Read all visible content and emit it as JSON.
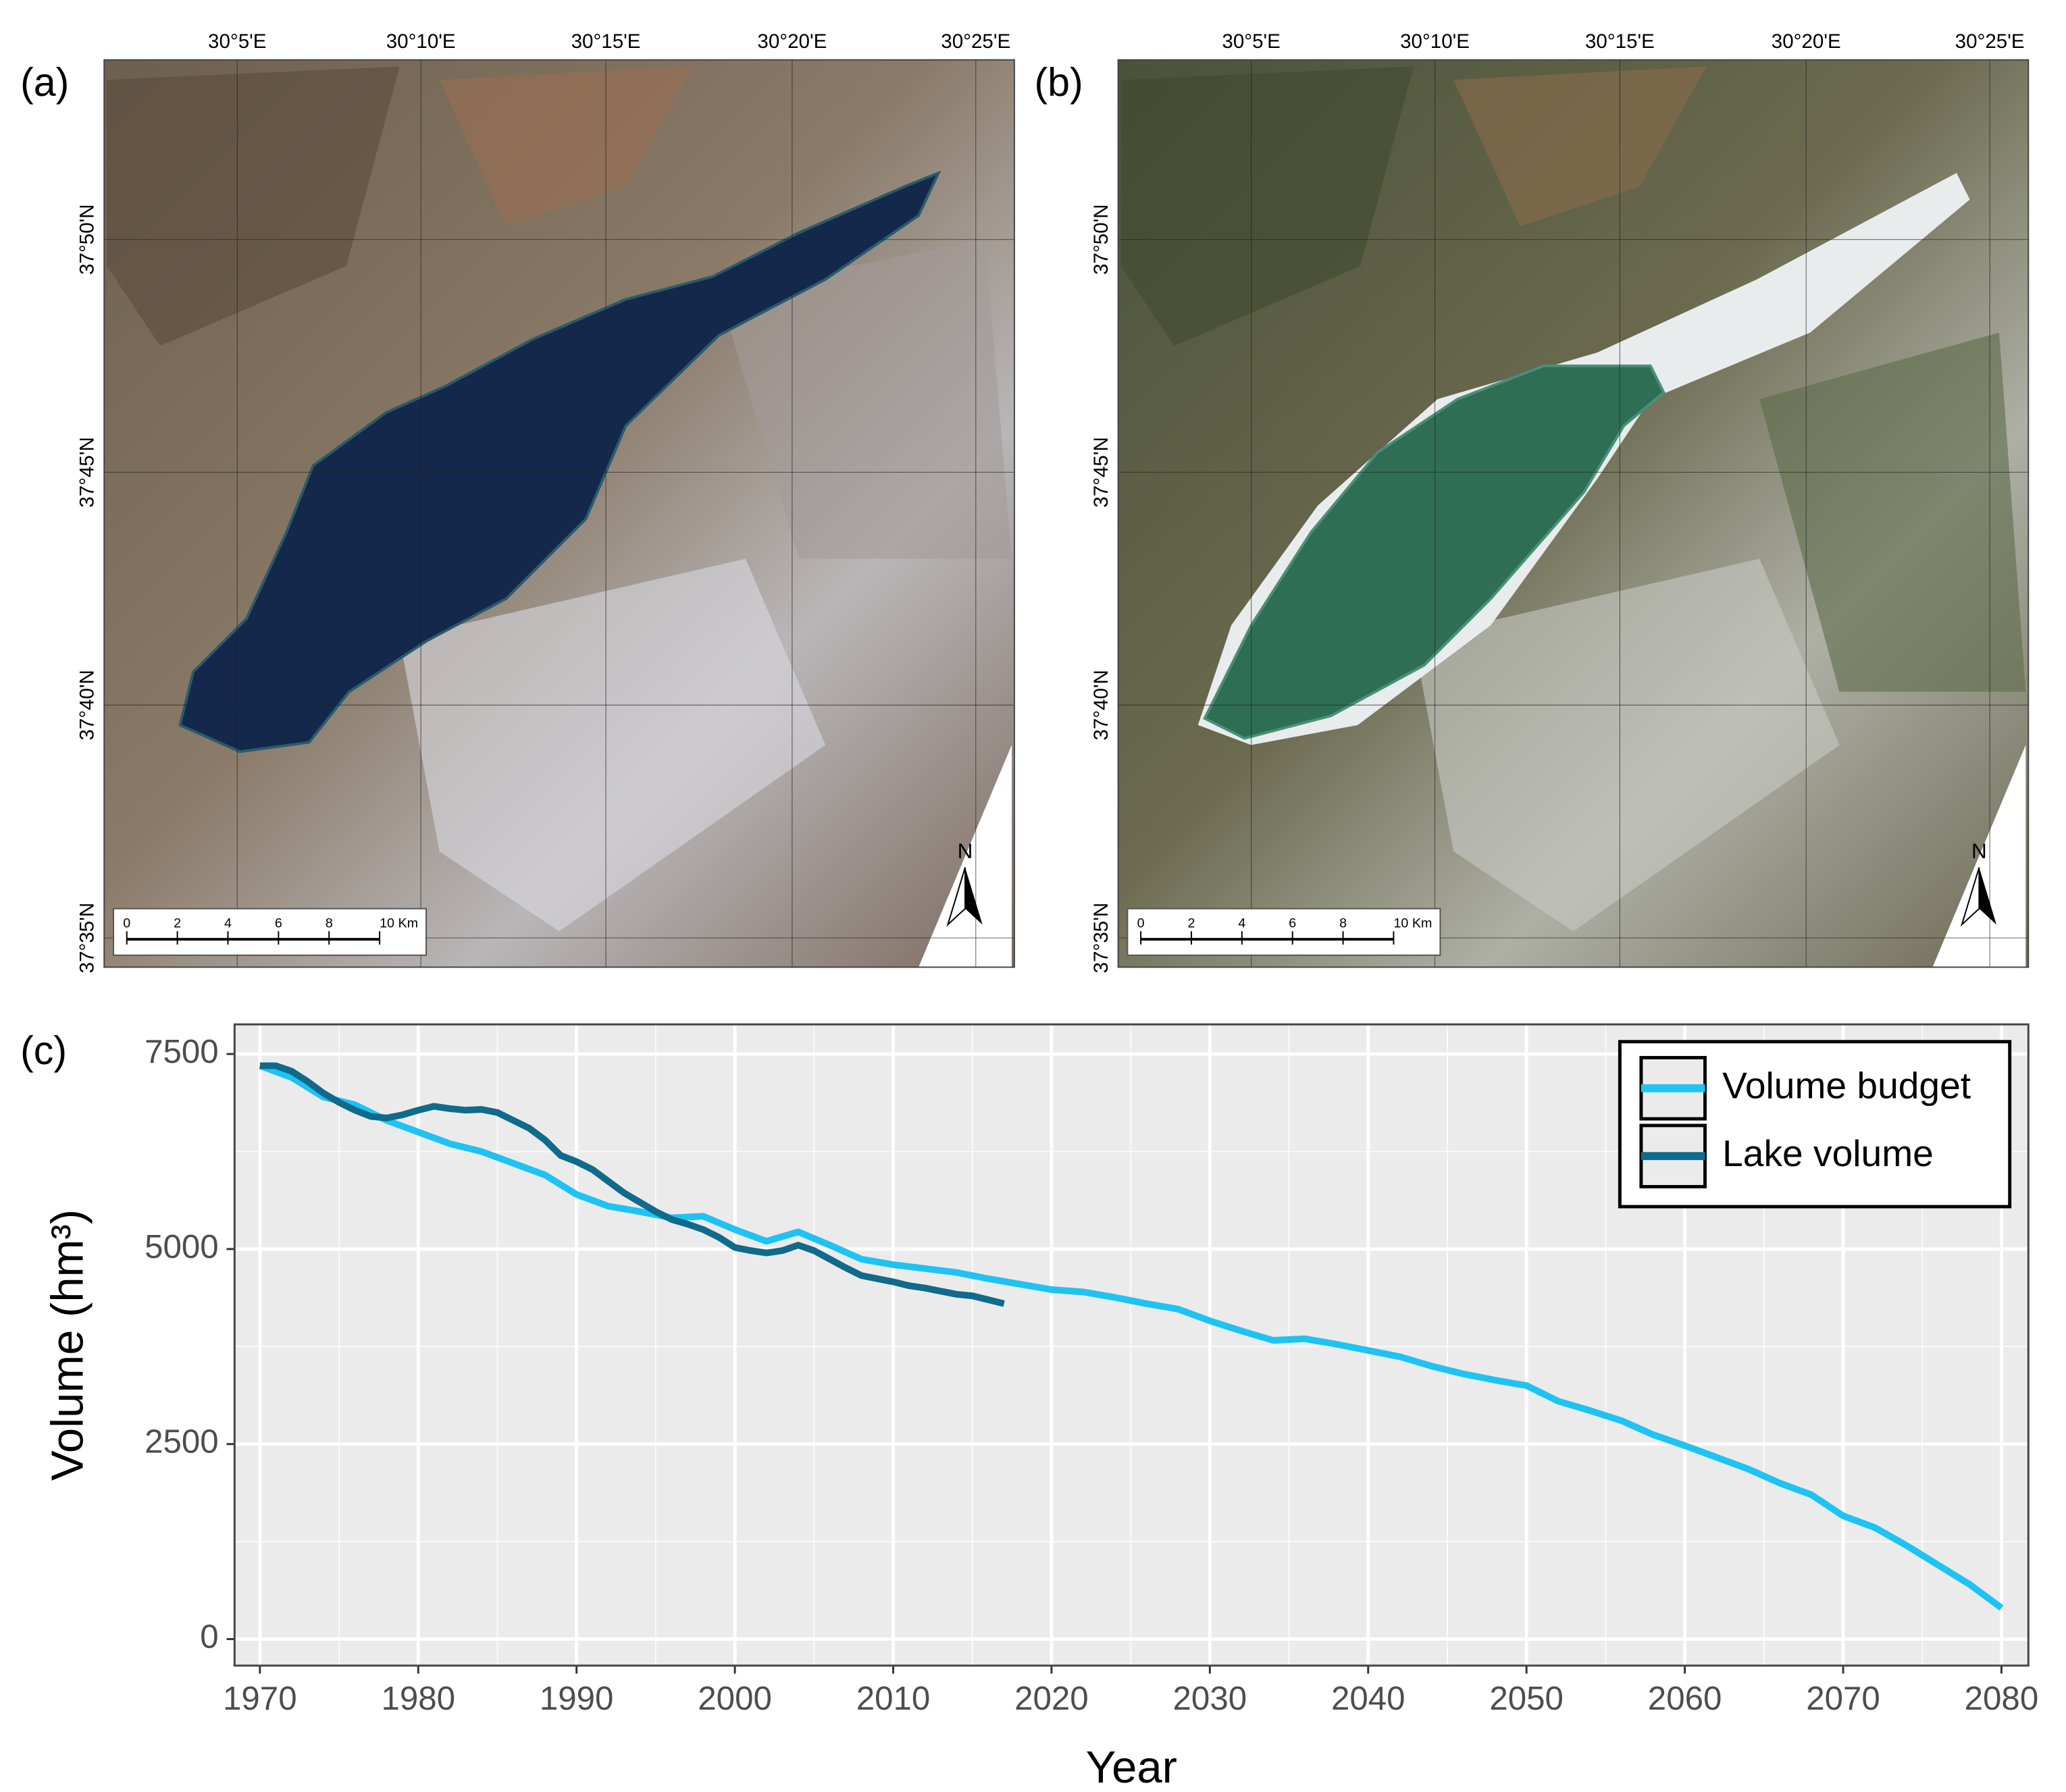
{
  "maps": [
    {
      "label": "(a)",
      "lon_labels": [
        "30°5'E",
        "30°10'E",
        "30°15'E",
        "30°20'E",
        "30°25'E"
      ],
      "lat_labels": [
        "37°50'N",
        "37°45'N",
        "37°40'N",
        "37°35'N"
      ],
      "scale_labels": [
        "0",
        "2",
        "4",
        "6",
        "8",
        "10 Km"
      ],
      "north": "N"
    },
    {
      "label": "(b)",
      "lon_labels": [
        "30°5'E",
        "30°10'E",
        "30°15'E",
        "30°20'E",
        "30°25'E"
      ],
      "lat_labels": [
        "37°50'N",
        "37°45'N",
        "37°40'N",
        "37°35'N"
      ],
      "scale_labels": [
        "0",
        "2",
        "4",
        "6",
        "8",
        "10 Km"
      ],
      "north": "N"
    }
  ],
  "chart_data": {
    "type": "line",
    "panel_label": "(c)",
    "xlabel": "Year",
    "ylabel": "Volume (hm³)",
    "xlim": [
      1968.4,
      2081.7
    ],
    "xticks": [
      1970,
      1980,
      1990,
      2000,
      2010,
      2020,
      2030,
      2040,
      2050,
      2060,
      2070,
      2080
    ],
    "ylim": [
      -340,
      7880
    ],
    "yticks": [
      0,
      2500,
      5000,
      7500
    ],
    "grid": true,
    "legend": "top-right",
    "series": [
      {
        "name": "Volume budget",
        "color": "#1ec3f3",
        "x": [
          1970,
          1972,
          1974,
          1976,
          1978,
          1980,
          1982,
          1984,
          1986,
          1988,
          1990,
          1992,
          1994,
          1996,
          1998,
          2000,
          2002,
          2004,
          2006,
          2008,
          2010,
          2012,
          2014,
          2016,
          2018,
          2020,
          2022,
          2024,
          2026,
          2028,
          2030,
          2032,
          2034,
          2036,
          2038,
          2040,
          2042,
          2044,
          2046,
          2048,
          2050,
          2052,
          2054,
          2056,
          2058,
          2060,
          2062,
          2064,
          2066,
          2068,
          2070,
          2072,
          2074,
          2076,
          2078,
          2080
        ],
        "values": [
          7350,
          7200,
          6950,
          6850,
          6650,
          6500,
          6350,
          6250,
          6100,
          5950,
          5700,
          5550,
          5480,
          5400,
          5420,
          5250,
          5100,
          5220,
          5050,
          4870,
          4800,
          4750,
          4700,
          4620,
          4550,
          4480,
          4450,
          4380,
          4300,
          4230,
          4080,
          3950,
          3830,
          3850,
          3780,
          3700,
          3620,
          3500,
          3400,
          3320,
          3250,
          3050,
          2930,
          2800,
          2620,
          2480,
          2330,
          2180,
          2000,
          1850,
          1580,
          1430,
          1200,
          950,
          700,
          400
        ]
      },
      {
        "name": "Lake volume",
        "color": "#0f6a8b",
        "x": [
          1970,
          1971,
          1972,
          1973,
          1974,
          1975,
          1976,
          1977,
          1978,
          1979,
          1980,
          1981,
          1982,
          1983,
          1984,
          1985,
          1986,
          1987,
          1988,
          1989,
          1990,
          1991,
          1992,
          1993,
          1994,
          1995,
          1996,
          1997,
          1998,
          1999,
          2000,
          2001,
          2002,
          2003,
          2004,
          2005,
          2006,
          2007,
          2008,
          2009,
          2010,
          2011,
          2012,
          2013,
          2014,
          2015,
          2016,
          2017
        ],
        "values": [
          7350,
          7350,
          7280,
          7150,
          7000,
          6880,
          6780,
          6700,
          6680,
          6720,
          6780,
          6830,
          6800,
          6780,
          6790,
          6750,
          6650,
          6550,
          6400,
          6200,
          6120,
          6020,
          5870,
          5720,
          5600,
          5480,
          5380,
          5320,
          5250,
          5150,
          5020,
          4980,
          4950,
          4980,
          5050,
          4980,
          4870,
          4760,
          4660,
          4620,
          4580,
          4530,
          4500,
          4460,
          4420,
          4400,
          4350,
          4300
        ]
      }
    ]
  }
}
